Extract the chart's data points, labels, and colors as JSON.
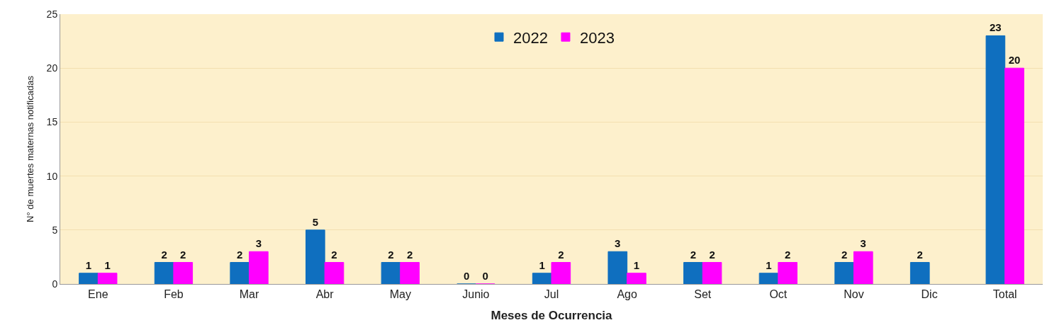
{
  "chart_data": {
    "type": "bar",
    "xlabel": "Meses de Ocurrencia",
    "ylabel": "N° de muertes maternas notificadas",
    "categories": [
      "Ene",
      "Feb",
      "Mar",
      "Abr",
      "May",
      "Junio",
      "Jul",
      "Ago",
      "Set",
      "Oct",
      "Nov",
      "Dic",
      "Total"
    ],
    "series": [
      {
        "name": "2022",
        "color": "#0f6fbf",
        "values": [
          1,
          2,
          2,
          5,
          2,
          0,
          1,
          3,
          2,
          1,
          2,
          2,
          23
        ]
      },
      {
        "name": "2023",
        "color": "#ff00ff",
        "values": [
          1,
          2,
          3,
          2,
          2,
          0,
          2,
          1,
          2,
          2,
          3,
          null,
          20
        ]
      }
    ],
    "ylim": [
      0,
      25
    ],
    "yticks": [
      0,
      5,
      10,
      15,
      20,
      25
    ],
    "grid": "y",
    "legend": "top",
    "data_labels": true
  }
}
